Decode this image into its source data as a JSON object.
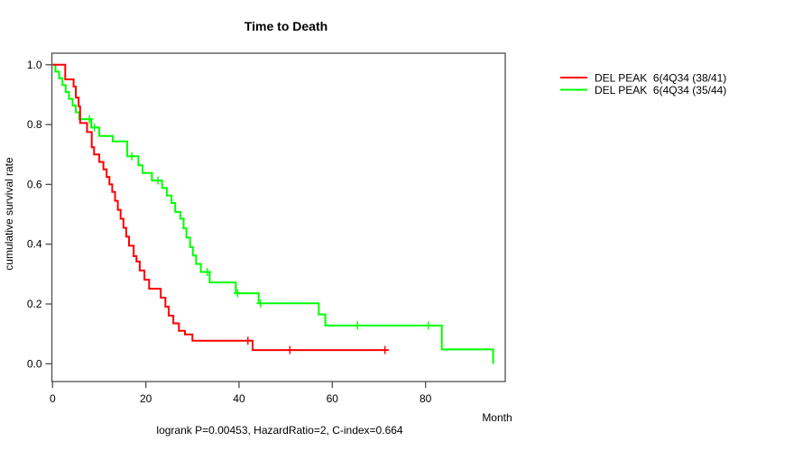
{
  "title": "Time to Death",
  "footer": "logrank P=0.00453, HazardRatio=2, C-index=0.664",
  "x_axis": {
    "label": "Month",
    "ticks": [
      "0",
      "20",
      "40",
      "60",
      "80"
    ]
  },
  "y_axis": {
    "label": "cumulative survival rate",
    "ticks": [
      "0.0",
      "0.2",
      "0.4",
      "0.6",
      "0.8",
      "1.0"
    ]
  },
  "legend": {
    "position": "right-outside",
    "entries": [
      {
        "label": "DEL PEAK  6(4Q34 (38/41)",
        "color": "#ff0000"
      },
      {
        "label": "DEL PEAK  6(4Q34 (35/44)",
        "color": "#00ff00"
      }
    ]
  },
  "chart_data": {
    "type": "line",
    "subtype": "kaplan-meier-step",
    "title": "Time to Death",
    "xlabel": "Month",
    "ylabel": "cumulative survival rate",
    "xlim": [
      0,
      97
    ],
    "ylim": [
      0,
      1.0
    ],
    "grid": false,
    "annotation": "logrank P=0.00453, HazardRatio=2, C-index=0.664",
    "legend_position": "right-outside",
    "series": [
      {
        "name": "DEL PEAK  6(4Q34 (38/41)",
        "color": "#ff0000",
        "events": "38/41",
        "end_month": 71.9,
        "steps": [
          [
            0,
            1.0
          ],
          [
            2.7,
            0.951
          ],
          [
            4.5,
            0.927
          ],
          [
            5.0,
            0.89
          ],
          [
            5.6,
            0.861
          ],
          [
            5.9,
            0.805
          ],
          [
            7.4,
            0.775
          ],
          [
            8.4,
            0.724
          ],
          [
            8.9,
            0.7
          ],
          [
            10.0,
            0.675
          ],
          [
            10.9,
            0.65
          ],
          [
            11.6,
            0.625
          ],
          [
            12.2,
            0.6
          ],
          [
            12.8,
            0.575
          ],
          [
            13.4,
            0.545
          ],
          [
            14.0,
            0.515
          ],
          [
            14.6,
            0.485
          ],
          [
            15.2,
            0.455
          ],
          [
            15.8,
            0.425
          ],
          [
            16.4,
            0.395
          ],
          [
            17.4,
            0.36
          ],
          [
            18.0,
            0.342
          ],
          [
            18.7,
            0.312
          ],
          [
            19.7,
            0.281
          ],
          [
            20.7,
            0.251
          ],
          [
            23.2,
            0.221
          ],
          [
            24.2,
            0.191
          ],
          [
            24.9,
            0.161
          ],
          [
            25.9,
            0.135
          ],
          [
            27.1,
            0.11
          ],
          [
            28.4,
            0.098
          ],
          [
            30.0,
            0.077
          ],
          [
            42.9,
            0.046
          ]
        ],
        "censor_marks": [
          [
            41.9,
            0.077
          ],
          [
            50.9,
            0.046
          ],
          [
            71.3,
            0.046
          ]
        ]
      },
      {
        "name": "DEL PEAK  6(4Q34 (35/44)",
        "color": "#00ff00",
        "events": "35/44",
        "end_month": 94.5,
        "steps": [
          [
            0,
            1.0
          ],
          [
            0.6,
            0.977
          ],
          [
            1.4,
            0.955
          ],
          [
            2.1,
            0.932
          ],
          [
            2.8,
            0.909
          ],
          [
            3.5,
            0.886
          ],
          [
            4.3,
            0.864
          ],
          [
            5.0,
            0.841
          ],
          [
            5.7,
            0.818
          ],
          [
            8.3,
            0.79
          ],
          [
            10.0,
            0.762
          ],
          [
            12.9,
            0.744
          ],
          [
            16.0,
            0.694
          ],
          [
            18.4,
            0.664
          ],
          [
            19.3,
            0.638
          ],
          [
            21.3,
            0.613
          ],
          [
            23.5,
            0.588
          ],
          [
            24.5,
            0.563
          ],
          [
            25.5,
            0.538
          ],
          [
            26.3,
            0.508
          ],
          [
            27.4,
            0.485
          ],
          [
            28.1,
            0.453
          ],
          [
            28.7,
            0.422
          ],
          [
            29.5,
            0.39
          ],
          [
            30.1,
            0.362
          ],
          [
            30.8,
            0.334
          ],
          [
            31.8,
            0.307
          ],
          [
            33.7,
            0.272
          ],
          [
            39.3,
            0.236
          ],
          [
            44.2,
            0.202
          ],
          [
            57.1,
            0.165
          ],
          [
            58.5,
            0.128
          ],
          [
            83.5,
            0.048
          ],
          [
            94.5,
            0.0
          ]
        ],
        "censor_marks": [
          [
            7.9,
            0.818
          ],
          [
            9.0,
            0.79
          ],
          [
            17.0,
            0.694
          ],
          [
            22.6,
            0.613
          ],
          [
            33.2,
            0.307
          ],
          [
            39.7,
            0.236
          ],
          [
            44.6,
            0.202
          ],
          [
            65.4,
            0.128
          ],
          [
            80.6,
            0.128
          ]
        ]
      }
    ]
  },
  "style": {
    "curve_width": 2,
    "frame_color": "#4d4d4d",
    "background": "#ffffff"
  }
}
